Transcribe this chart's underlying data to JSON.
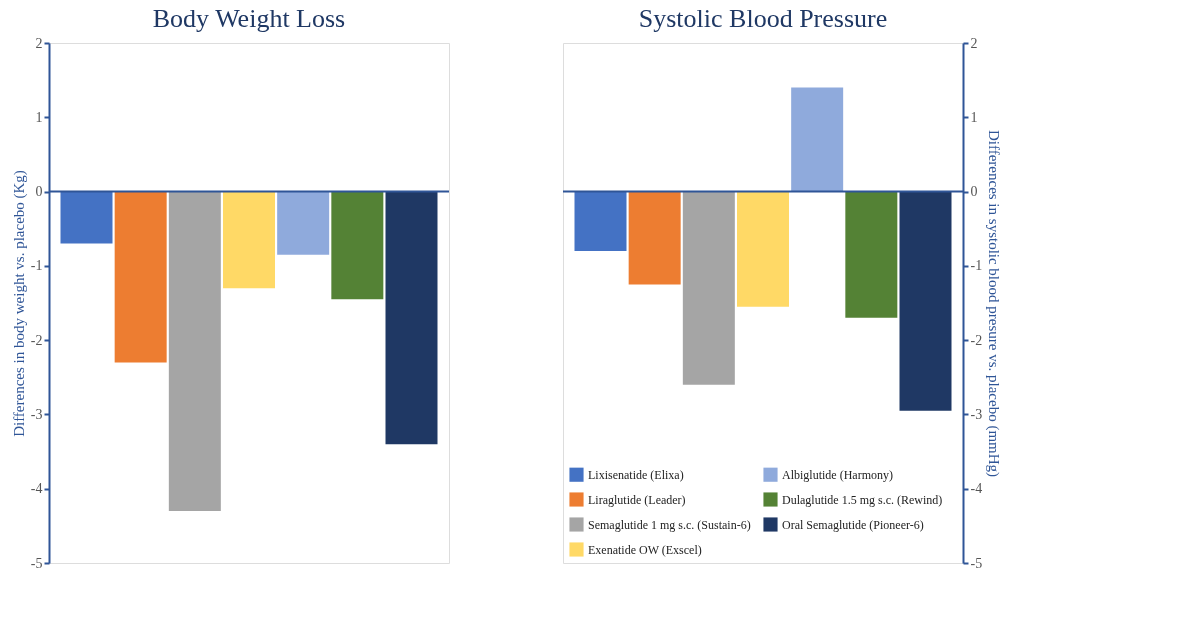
{
  "chart_data": [
    {
      "type": "bar",
      "title": "Body Weight Loss",
      "ylabel": "Differences in body weight vs. placebo (Kg)",
      "categories": [
        null
      ],
      "series": [
        {
          "color": "#4472c4",
          "values": [
            -0.7
          ]
        },
        {
          "color": "#ed7d31",
          "values": [
            -2.3
          ]
        },
        {
          "color": "#a5a5a5",
          "values": [
            -4.3
          ]
        },
        {
          "color": "#ffd966",
          "values": [
            -1.3
          ]
        },
        {
          "color": "#8faadc",
          "values": [
            -0.85
          ]
        },
        {
          "color": "#548235",
          "values": [
            -1.45
          ]
        },
        {
          "color": "#1f3864",
          "values": [
            -3.4
          ]
        }
      ],
      "ylim": [
        -5,
        2
      ],
      "yticks": [
        -5,
        -4,
        -3,
        -2,
        -1,
        0,
        1,
        2
      ],
      "tick_labels": "y",
      "ref_lines": [
        {
          "axis": "y",
          "value": 0,
          "color": "#2f5597"
        }
      ]
    },
    {
      "type": "bar",
      "title": "Systolic Blood Pressure",
      "ylabel": "Differences in systolic blood presure vs. placebo (mmHg)",
      "categories": [
        null
      ],
      "series": [
        {
          "name": "Lixisenatide (Elixa)",
          "color": "#4472c4",
          "values": [
            -0.8
          ]
        },
        {
          "name": "Liraglutide (Leader)",
          "color": "#ed7d31",
          "values": [
            -1.25
          ]
        },
        {
          "name": "Semaglutide 1 mg s.c. (Sustain-6)",
          "color": "#a5a5a5",
          "values": [
            -2.6
          ]
        },
        {
          "name": "Exenatide OW (Exscel)",
          "color": "#ffd966",
          "values": [
            -1.55
          ]
        },
        {
          "name": "Albiglutide (Harmony)",
          "color": "#8faadc",
          "values": [
            1.4
          ]
        },
        {
          "name": "Dulaglutide 1.5 mg s.c. (Rewind)",
          "color": "#548235",
          "values": [
            -1.7
          ]
        },
        {
          "name": "Oral Semaglutide (Pioneer-6)",
          "color": "#1f3864",
          "values": [
            -2.95
          ]
        }
      ],
      "ylim": [
        -5,
        2
      ],
      "yticks": [
        -5,
        -4,
        -3,
        -2,
        -1,
        0,
        1,
        2
      ],
      "tick_labels": "y",
      "legend": "bottom left",
      "ref_lines": [
        {
          "axis": "y",
          "value": 0,
          "color": "#2f5597"
        }
      ]
    }
  ]
}
